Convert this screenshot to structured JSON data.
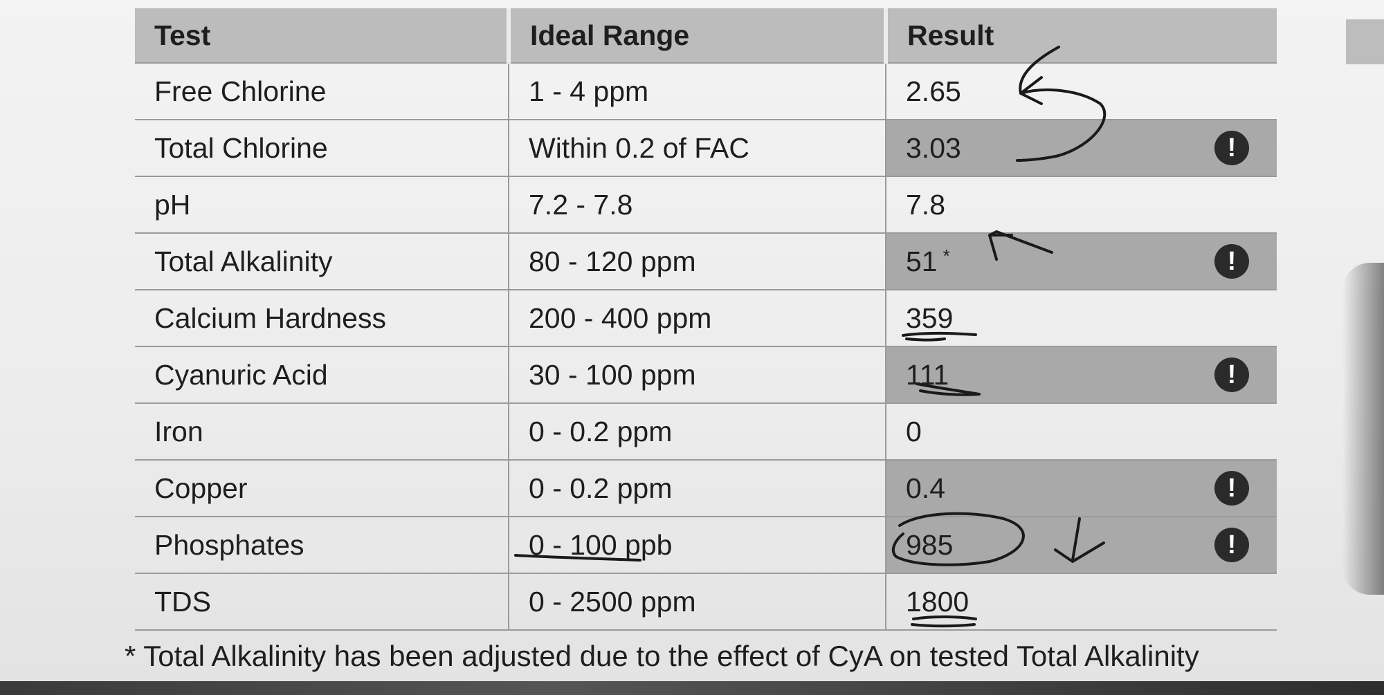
{
  "table": {
    "headers": {
      "test": "Test",
      "range": "Ideal Range",
      "result": "Result"
    },
    "rows": [
      {
        "test": "Free Chlorine",
        "range": "1 - 4 ppm",
        "result": "2.65",
        "asterisk": "",
        "alert": ""
      },
      {
        "test": "Total Chlorine",
        "range": "Within 0.2 of FAC",
        "result": "3.03",
        "asterisk": "",
        "alert": "!"
      },
      {
        "test": "pH",
        "range": "7.2 - 7.8",
        "result": "7.8",
        "asterisk": "",
        "alert": ""
      },
      {
        "test": "Total Alkalinity",
        "range": "80 - 120 ppm",
        "result": "51",
        "asterisk": "*",
        "alert": "!"
      },
      {
        "test": "Calcium Hardness",
        "range": "200 - 400 ppm",
        "result": "359",
        "asterisk": "",
        "alert": ""
      },
      {
        "test": "Cyanuric Acid",
        "range": "30 - 100 ppm",
        "result": "111",
        "asterisk": "",
        "alert": "!"
      },
      {
        "test": "Iron",
        "range": "0 - 0.2 ppm",
        "result": "0",
        "asterisk": "",
        "alert": ""
      },
      {
        "test": "Copper",
        "range": "0 - 0.2 ppm",
        "result": "0.4",
        "asterisk": "",
        "alert": "!"
      },
      {
        "test": "Phosphates",
        "range": "0 - 100 ppb",
        "result": "985",
        "asterisk": "",
        "alert": "!"
      },
      {
        "test": "TDS",
        "range": "0 - 2500 ppm",
        "result": "1800",
        "asterisk": "",
        "alert": ""
      }
    ]
  },
  "footnote": {
    "marker": "*",
    "text": "Total Alkalinity has been adjusted due to the effect of CyA on tested Total Alkalinity"
  },
  "annotations": {
    "ink_color": "#1a1a1a",
    "icons": [
      "curved-arrow-icon",
      "up-arrow-icon",
      "down-arrow-icon",
      "circle-mark-icon",
      "underline-mark-icon"
    ]
  }
}
